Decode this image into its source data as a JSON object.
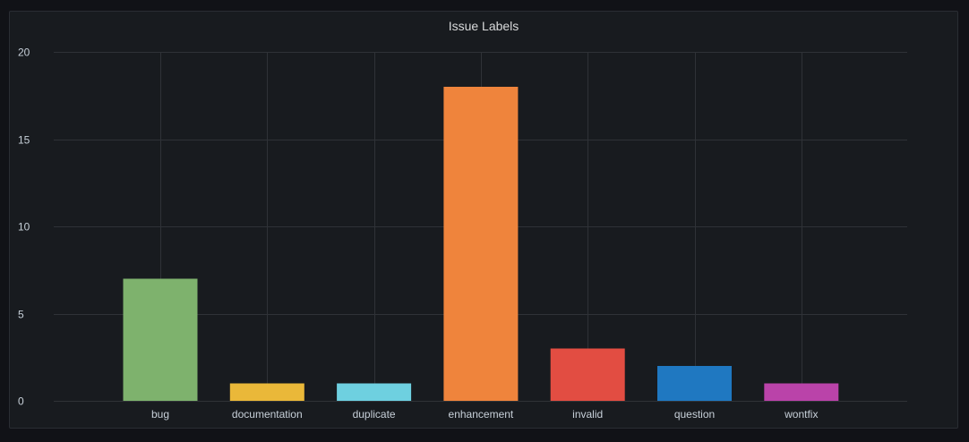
{
  "panel": {
    "title": "Issue Labels"
  },
  "chart_data": {
    "type": "bar",
    "title": "Issue Labels",
    "xlabel": "",
    "ylabel": "",
    "categories": [
      "bug",
      "documentation",
      "duplicate",
      "enhancement",
      "invalid",
      "question",
      "wontfix"
    ],
    "values": [
      7,
      1,
      1,
      18,
      3,
      2,
      1
    ],
    "colors": [
      "#7eb26d",
      "#eab839",
      "#6ed0e0",
      "#ef843c",
      "#e24d42",
      "#1f78c1",
      "#ba43a9"
    ],
    "ylim": [
      0,
      20
    ],
    "yticks": [
      0,
      5,
      10,
      15,
      20
    ],
    "grid": true,
    "legend": "none"
  }
}
